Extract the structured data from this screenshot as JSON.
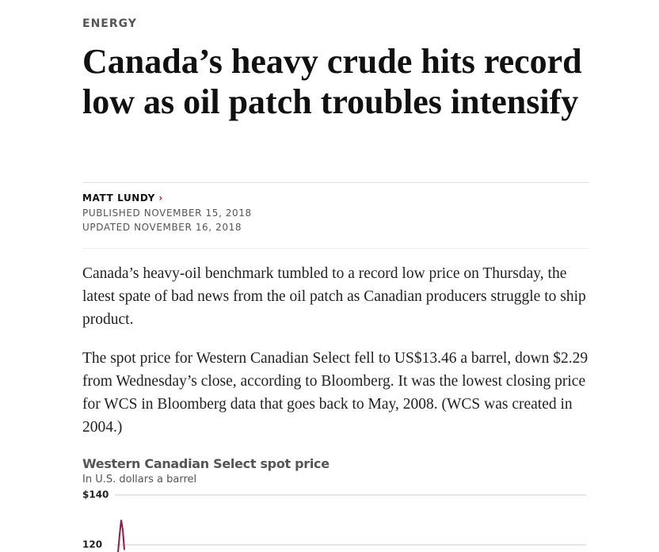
{
  "article": {
    "section": "ENERGY",
    "headline": "Canada’s heavy crude hits record low as oil patch troubles intensify",
    "author": "MATT LUNDY",
    "published": "PUBLISHED NOVEMBER 15, 2018",
    "updated": "UPDATED NOVEMBER 16, 2018",
    "paragraphs": [
      "Canada’s heavy-oil benchmark tumbled to a record low price on Thursday, the latest spate of bad news from the oil patch as Canadian producers struggle to ship product.",
      "The spot price for Western Canadian Select fell to US$13.46 a barrel, down $2.29 from Wednesday’s close, according to Bloomberg. It was the lowest closing price for WCS in Bloomberg data that goes back to May, 2008. (WCS was created in 2004.)"
    ]
  },
  "chart_data": {
    "type": "line",
    "title": "Western Canadian Select spot price",
    "subtitle": "In U.S. dollars a barrel",
    "categories": [
      null,
      null,
      null,
      null,
      null
    ],
    "series": [
      {
        "name": null,
        "color": "#8b1d4b",
        "values": [
          117,
          124,
          130,
          126,
          118
        ]
      }
    ],
    "ylim": [
      100,
      140
    ],
    "yticks": [
      {
        "value": 140,
        "label": "$140"
      },
      120
    ],
    "grid": true
  }
}
